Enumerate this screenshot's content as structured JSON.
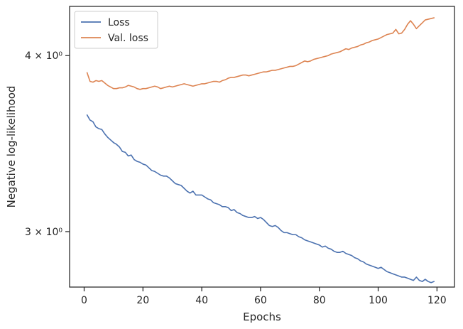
{
  "chart_data": {
    "type": "line",
    "xlabel": "Epochs",
    "ylabel": "Negative log-likelihood",
    "y_scale": "log",
    "xlim": [
      -4.95,
      125.95
    ],
    "ylim": [
      2.74,
      4.335
    ],
    "x_ticks": [
      0,
      20,
      40,
      60,
      80,
      100,
      120
    ],
    "y_ticks": [
      {
        "value": 3,
        "label": "3 × 10⁰"
      },
      {
        "value": 4,
        "label": "4 × 10⁰"
      }
    ],
    "grid": false,
    "legend_position": "top-left",
    "series": [
      {
        "name": "Loss",
        "color": "#4c72b0",
        "x": [
          1,
          2,
          3,
          4,
          5,
          6,
          7,
          8,
          9,
          10,
          11,
          12,
          13,
          14,
          15,
          16,
          17,
          18,
          19,
          20,
          21,
          22,
          23,
          24,
          25,
          26,
          27,
          28,
          29,
          30,
          31,
          32,
          33,
          34,
          35,
          36,
          37,
          38,
          39,
          40,
          41,
          42,
          43,
          44,
          45,
          46,
          47,
          48,
          49,
          50,
          51,
          52,
          53,
          54,
          55,
          56,
          57,
          58,
          59,
          60,
          61,
          62,
          63,
          64,
          65,
          66,
          67,
          68,
          69,
          70,
          71,
          72,
          73,
          74,
          75,
          76,
          77,
          78,
          79,
          80,
          81,
          82,
          83,
          84,
          85,
          86,
          87,
          88,
          89,
          90,
          91,
          92,
          93,
          94,
          95,
          96,
          97,
          98,
          99,
          100,
          101,
          102,
          103,
          104,
          105,
          106,
          107,
          108,
          109,
          110,
          111,
          112,
          113,
          114,
          115,
          116,
          117,
          118,
          119
        ],
        "values": [
          3.63,
          3.6,
          3.59,
          3.56,
          3.55,
          3.545,
          3.52,
          3.5,
          3.485,
          3.47,
          3.46,
          3.445,
          3.42,
          3.415,
          3.395,
          3.4,
          3.375,
          3.365,
          3.36,
          3.35,
          3.345,
          3.33,
          3.315,
          3.31,
          3.3,
          3.29,
          3.285,
          3.285,
          3.275,
          3.26,
          3.245,
          3.24,
          3.235,
          3.22,
          3.205,
          3.195,
          3.205,
          3.185,
          3.185,
          3.185,
          3.175,
          3.165,
          3.16,
          3.145,
          3.14,
          3.135,
          3.125,
          3.125,
          3.12,
          3.105,
          3.11,
          3.095,
          3.09,
          3.08,
          3.075,
          3.07,
          3.07,
          3.075,
          3.065,
          3.07,
          3.06,
          3.045,
          3.03,
          3.025,
          3.03,
          3.02,
          3.005,
          2.995,
          2.995,
          2.99,
          2.985,
          2.985,
          2.975,
          2.97,
          2.96,
          2.955,
          2.95,
          2.945,
          2.94,
          2.935,
          2.925,
          2.93,
          2.92,
          2.915,
          2.905,
          2.9,
          2.9,
          2.905,
          2.895,
          2.89,
          2.885,
          2.875,
          2.87,
          2.86,
          2.855,
          2.845,
          2.84,
          2.835,
          2.83,
          2.825,
          2.83,
          2.82,
          2.81,
          2.805,
          2.8,
          2.795,
          2.79,
          2.785,
          2.785,
          2.78,
          2.775,
          2.77,
          2.785,
          2.77,
          2.765,
          2.775,
          2.765,
          2.76,
          2.765
        ]
      },
      {
        "name": "Val. loss",
        "color": "#dd8452",
        "x": [
          1,
          2,
          3,
          4,
          5,
          6,
          7,
          8,
          9,
          10,
          11,
          12,
          13,
          14,
          15,
          16,
          17,
          18,
          19,
          20,
          21,
          22,
          23,
          24,
          25,
          26,
          27,
          28,
          29,
          30,
          31,
          32,
          33,
          34,
          35,
          36,
          37,
          38,
          39,
          40,
          41,
          42,
          43,
          44,
          45,
          46,
          47,
          48,
          49,
          50,
          51,
          52,
          53,
          54,
          55,
          56,
          57,
          58,
          59,
          60,
          61,
          62,
          63,
          64,
          65,
          66,
          67,
          68,
          69,
          70,
          71,
          72,
          73,
          74,
          75,
          76,
          77,
          78,
          79,
          80,
          81,
          82,
          83,
          84,
          85,
          86,
          87,
          88,
          89,
          90,
          91,
          92,
          93,
          94,
          95,
          96,
          97,
          98,
          99,
          100,
          101,
          102,
          103,
          104,
          105,
          106,
          107,
          108,
          109,
          110,
          111,
          112,
          113,
          114,
          115,
          116,
          117,
          118,
          119
        ],
        "values": [
          3.89,
          3.835,
          3.83,
          3.84,
          3.835,
          3.84,
          3.825,
          3.81,
          3.8,
          3.79,
          3.79,
          3.795,
          3.795,
          3.8,
          3.81,
          3.805,
          3.8,
          3.79,
          3.785,
          3.79,
          3.79,
          3.795,
          3.8,
          3.805,
          3.8,
          3.79,
          3.795,
          3.8,
          3.805,
          3.8,
          3.805,
          3.81,
          3.815,
          3.82,
          3.815,
          3.81,
          3.805,
          3.81,
          3.815,
          3.82,
          3.82,
          3.825,
          3.83,
          3.835,
          3.835,
          3.83,
          3.84,
          3.845,
          3.855,
          3.86,
          3.86,
          3.865,
          3.87,
          3.875,
          3.875,
          3.87,
          3.875,
          3.88,
          3.885,
          3.89,
          3.895,
          3.895,
          3.9,
          3.905,
          3.905,
          3.91,
          3.915,
          3.92,
          3.925,
          3.93,
          3.93,
          3.935,
          3.945,
          3.955,
          3.965,
          3.96,
          3.965,
          3.975,
          3.98,
          3.985,
          3.99,
          3.995,
          4.0,
          4.01,
          4.015,
          4.02,
          4.025,
          4.035,
          4.045,
          4.04,
          4.05,
          4.055,
          4.06,
          4.07,
          4.075,
          4.085,
          4.09,
          4.1,
          4.105,
          4.11,
          4.12,
          4.13,
          4.14,
          4.145,
          4.15,
          4.175,
          4.145,
          4.15,
          4.175,
          4.21,
          4.235,
          4.21,
          4.18,
          4.2,
          4.22,
          4.24,
          4.245,
          4.25,
          4.255
        ]
      }
    ]
  }
}
